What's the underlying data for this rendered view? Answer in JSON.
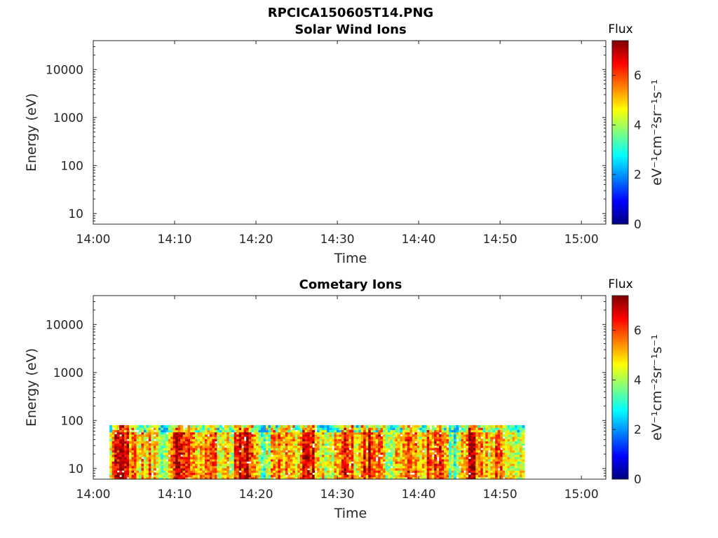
{
  "figure": {
    "title": "RPCICA150605T14.PNG"
  },
  "colors": {
    "axis": "#262626",
    "colormap": [
      "#00007f",
      "#0000ff",
      "#007fff",
      "#00ffff",
      "#7fff7f",
      "#ffff00",
      "#ff7f00",
      "#ff0000",
      "#7f0000"
    ]
  },
  "chart_data": [
    {
      "type": "heatmap",
      "title": "Solar Wind Ions",
      "xlabel": "Time",
      "ylabel": "Energy (eV)",
      "x_ticks": [
        "14:00",
        "14:10",
        "14:20",
        "14:30",
        "14:40",
        "14:50",
        "15:00"
      ],
      "x_range": [
        "14:00",
        "15:03"
      ],
      "y_scale": "log",
      "y_ticks": [
        "10",
        "100",
        "1000",
        "10000"
      ],
      "y_range": [
        6,
        40000
      ],
      "grid": false,
      "data": [],
      "colorbar": {
        "title": "Flux",
        "label": "eV⁻¹cm⁻²sr⁻¹s⁻¹",
        "ticks": [
          "0",
          "2",
          "4",
          "6"
        ],
        "range": [
          0,
          7.4
        ],
        "colormap": "jet"
      }
    },
    {
      "type": "heatmap",
      "title": "Cometary Ions",
      "xlabel": "Time",
      "ylabel": "Energy (eV)",
      "x_ticks": [
        "14:00",
        "14:10",
        "14:20",
        "14:30",
        "14:40",
        "14:50",
        "15:00"
      ],
      "x_range": [
        "14:00",
        "15:03"
      ],
      "y_scale": "log",
      "y_ticks": [
        "10",
        "100",
        "1000",
        "10000"
      ],
      "y_range": [
        6,
        40000
      ],
      "grid": false,
      "data": {
        "time_start": "14:02",
        "time_end": "14:53",
        "energy_range": [
          6,
          80
        ],
        "flux_range": [
          2,
          7.4
        ]
      },
      "colorbar": {
        "title": "Flux",
        "label": "eV⁻¹cm⁻²sr⁻¹s⁻¹",
        "ticks": [
          "0",
          "2",
          "4",
          "6"
        ],
        "range": [
          0,
          7.4
        ],
        "colormap": "jet"
      }
    }
  ]
}
